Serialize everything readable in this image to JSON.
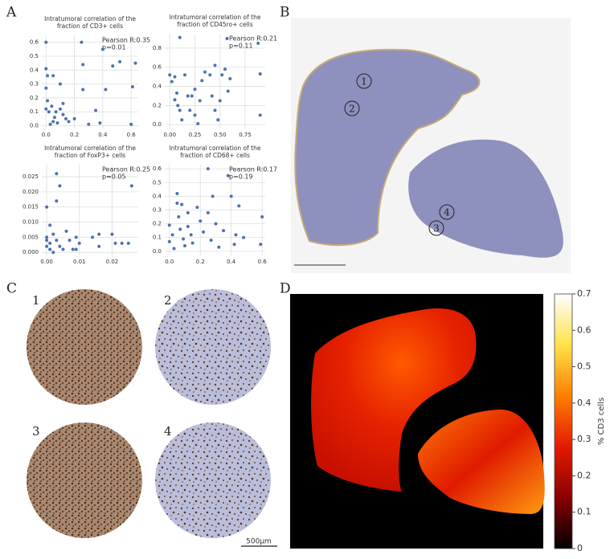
{
  "panel_labels": [
    "A",
    "B",
    "C",
    "D"
  ],
  "slide_markers": [
    "1",
    "2",
    "4",
    "3"
  ],
  "core_labels": [
    "1",
    "2",
    "3",
    "4"
  ],
  "scale_bar": "500μm",
  "chart_data": [
    {
      "type": "scatter",
      "title": [
        "Intratumoral correlation of the",
        "fraction of CD3+ cells"
      ],
      "annotations": [
        "Pearson R:0.35",
        "p=0.01"
      ],
      "color": "#4c72b0",
      "grid": true,
      "xlim": [
        -0.03,
        0.65
      ],
      "ylim": [
        -0.02,
        0.65
      ],
      "xticks": [
        {
          "value": 0,
          "label": "0.0"
        },
        0.2,
        0.4,
        0.6
      ],
      "yticks": [
        {
          "value": 0,
          "label": "0.0"
        },
        0.1,
        0.2,
        0.3,
        0.4,
        0.5,
        0.6
      ],
      "x": [
        0.0,
        0.0,
        0.01,
        0.05,
        0.0,
        0.01,
        0.0,
        0.02,
        0.05,
        0.06,
        0.03,
        0.08,
        0.1,
        0.12,
        0.14,
        0.1,
        0.12,
        0.16,
        0.2,
        0.25,
        0.26,
        0.26,
        0.3,
        0.35,
        0.38,
        0.4,
        0.42,
        0.47,
        0.52,
        0.6,
        0.61,
        0.63,
        0.07,
        0.04
      ],
      "values": [
        0.6,
        0.41,
        0.36,
        0.36,
        0.27,
        0.18,
        0.12,
        0.1,
        0.03,
        0.06,
        0.01,
        0.02,
        0.12,
        0.08,
        0.05,
        0.3,
        0.16,
        0.03,
        0.05,
        0.6,
        0.44,
        0.26,
        0.01,
        0.11,
        0.02,
        0.55,
        0.26,
        0.43,
        0.46,
        0.01,
        0.28,
        0.45,
        0.1,
        0.14
      ]
    },
    {
      "type": "scatter",
      "title": [
        "Intratumoral correlation of the",
        "fraction of CD45ro+ cells"
      ],
      "annotations": [
        "Pearson R:0.21",
        "p=0.11"
      ],
      "color": "#4c72b0",
      "grid": true,
      "xlim": [
        -0.05,
        0.95
      ],
      "ylim": [
        -0.04,
        0.95
      ],
      "xticks": [
        {
          "value": 0,
          "label": "0.00"
        },
        0.25,
        {
          "value": 0.5,
          "label": "0.50"
        },
        0.75
      ],
      "yticks": [
        {
          "value": 0,
          "label": "0.0"
        },
        0.2,
        0.4,
        0.6,
        0.8
      ],
      "x": [
        0.1,
        0.0,
        0.02,
        0.05,
        0.07,
        0.05,
        0.08,
        0.1,
        0.12,
        0.15,
        0.18,
        0.2,
        0.22,
        0.25,
        0.25,
        0.3,
        0.32,
        0.35,
        0.4,
        0.42,
        0.45,
        0.48,
        0.5,
        0.52,
        0.55,
        0.57,
        0.58,
        0.6,
        0.88,
        0.9,
        0.9,
        0.45,
        0.28
      ],
      "values": [
        0.91,
        0.52,
        0.45,
        0.5,
        0.33,
        0.26,
        0.2,
        0.15,
        0.05,
        0.52,
        0.3,
        0.15,
        0.3,
        0.1,
        0.37,
        0.25,
        0.46,
        0.55,
        0.52,
        0.3,
        0.62,
        0.05,
        0.25,
        0.52,
        0.58,
        0.9,
        0.35,
        0.48,
        0.85,
        0.53,
        0.1,
        0.15,
        0.01
      ]
    },
    {
      "type": "scatter",
      "title": [
        "Intratumoral correlation of the",
        "fraction of FoxP3+ cells"
      ],
      "annotations": [
        "Pearson R:0.25",
        "p=0.05"
      ],
      "color": "#4c72b0",
      "grid": true,
      "xlim": [
        -0.0015,
        0.028
      ],
      "ylim": [
        -0.001,
        0.029
      ],
      "xticks": [
        {
          "value": 0,
          "label": "0.00"
        },
        0.01,
        0.02
      ],
      "yticks": [
        {
          "value": 0,
          "label": "0.000"
        },
        0.005,
        {
          "value": 0.01,
          "label": "0.010"
        },
        0.015,
        {
          "value": 0.02,
          "label": "0.020"
        },
        0.025
      ],
      "x": [
        0.0,
        0.001,
        0.0,
        0.0,
        0.001,
        0.0,
        0.001,
        0.002,
        0.003,
        0.004,
        0.003,
        0.002,
        0.003,
        0.004,
        0.005,
        0.006,
        0.007,
        0.008,
        0.009,
        0.009,
        0.01,
        0.014,
        0.016,
        0.016,
        0.02,
        0.021,
        0.023,
        0.026,
        0.025
      ],
      "values": [
        0.015,
        0.009,
        0.005,
        0.004,
        0.003,
        0.002,
        0.001,
        0.0,
        0.026,
        0.022,
        0.017,
        0.006,
        0.004,
        0.002,
        0.001,
        0.007,
        0.004,
        0.001,
        0.001,
        0.005,
        0.003,
        0.005,
        0.006,
        0.002,
        0.006,
        0.003,
        0.003,
        0.022,
        0.003
      ]
    },
    {
      "type": "scatter",
      "title": [
        "Intratumoral correlation of the",
        "fraction of CD68+ cells"
      ],
      "annotations": [
        "Pearson R:0.17",
        "p=0.19"
      ],
      "color": "#4c72b0",
      "grid": true,
      "xlim": [
        -0.03,
        0.62
      ],
      "ylim": [
        -0.03,
        0.63
      ],
      "xticks": [
        {
          "value": 0,
          "label": "0.0"
        },
        0.2,
        0.4,
        0.6
      ],
      "yticks": [
        {
          "value": 0,
          "label": "0.0"
        },
        0.1,
        0.2,
        0.3,
        0.4,
        0.5,
        0.6
      ],
      "x": [
        0.0,
        0.02,
        0.0,
        0.03,
        0.05,
        0.05,
        0.06,
        0.08,
        0.07,
        0.09,
        0.1,
        0.12,
        0.12,
        0.14,
        0.15,
        0.18,
        0.2,
        0.22,
        0.25,
        0.25,
        0.27,
        0.28,
        0.3,
        0.32,
        0.35,
        0.38,
        0.4,
        0.42,
        0.43,
        0.59,
        0.6,
        0.45,
        0.48
      ],
      "values": [
        0.19,
        0.12,
        0.07,
        0.02,
        0.42,
        0.35,
        0.25,
        0.34,
        0.16,
        0.09,
        0.04,
        0.28,
        0.18,
        0.12,
        0.06,
        0.32,
        0.22,
        0.14,
        0.6,
        0.28,
        0.08,
        0.4,
        0.2,
        0.03,
        0.15,
        0.55,
        0.4,
        0.05,
        0.12,
        0.05,
        0.25,
        0.33,
        0.1
      ]
    },
    {
      "type": "colorbar",
      "ylabel": "% CD3 cells",
      "colors": [
        "#000000",
        "#8b0000",
        "#e41a00",
        "#ff7f00",
        "#ffe24a",
        "#ffffff"
      ],
      "ylim": [
        0,
        0.7
      ],
      "yticks": [
        0,
        0.1,
        0.2,
        0.3,
        0.4,
        0.5,
        0.6,
        0.7
      ]
    }
  ]
}
